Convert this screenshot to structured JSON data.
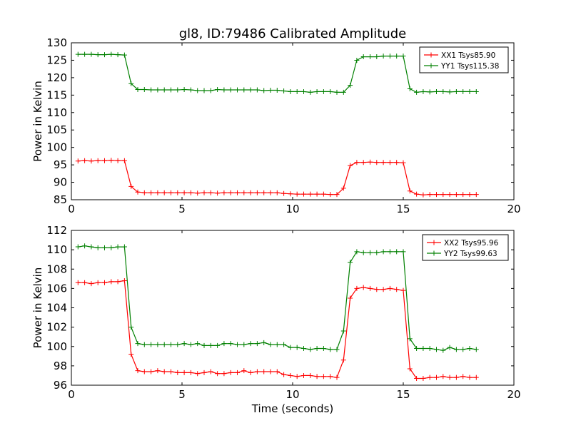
{
  "figure": {
    "title": "gl8, ID:79486 Calibrated Amplitude"
  },
  "chart_data": [
    {
      "type": "line",
      "title": "gl8, ID:79486 Calibrated Amplitude",
      "xlabel": "",
      "ylabel": "Power in Kelvin",
      "xlim": [
        0,
        20
      ],
      "ylim": [
        85,
        130
      ],
      "xticks": [
        0,
        5,
        10,
        15,
        20
      ],
      "yticks": [
        85,
        90,
        95,
        100,
        105,
        110,
        115,
        120,
        125,
        130
      ],
      "grid": false,
      "legend_placement": "top-right",
      "x": [
        0.3,
        0.6,
        0.9,
        1.2,
        1.5,
        1.8,
        2.1,
        2.4,
        2.7,
        3.0,
        3.3,
        3.6,
        3.9,
        4.2,
        4.5,
        4.8,
        5.1,
        5.4,
        5.7,
        6.0,
        6.3,
        6.6,
        6.9,
        7.2,
        7.5,
        7.8,
        8.1,
        8.4,
        8.7,
        9.0,
        9.3,
        9.6,
        9.9,
        10.2,
        10.5,
        10.8,
        11.1,
        11.4,
        11.7,
        12.0,
        12.3,
        12.6,
        12.9,
        13.2,
        13.5,
        13.8,
        14.1,
        14.4,
        14.7,
        15.0,
        15.3,
        15.6,
        15.9,
        16.2,
        16.5,
        16.8,
        17.1,
        17.4,
        17.7,
        18.0,
        18.3
      ],
      "series": [
        {
          "name": "XX1 Tsys85.90",
          "color": "#ff0000",
          "values": [
            96.1,
            96.2,
            96.1,
            96.2,
            96.2,
            96.3,
            96.2,
            96.2,
            88.8,
            87.2,
            87.0,
            87.0,
            87.0,
            87.0,
            87.0,
            87.0,
            87.0,
            87.0,
            86.9,
            87.0,
            87.0,
            86.9,
            87.0,
            87.0,
            87.0,
            87.0,
            87.0,
            87.0,
            87.0,
            87.0,
            87.0,
            86.8,
            86.7,
            86.6,
            86.6,
            86.6,
            86.6,
            86.6,
            86.5,
            86.5,
            88.3,
            94.8,
            95.7,
            95.7,
            95.8,
            95.7,
            95.7,
            95.7,
            95.7,
            95.6,
            87.5,
            86.6,
            86.4,
            86.5,
            86.5,
            86.5,
            86.5,
            86.5,
            86.5,
            86.5,
            86.5
          ]
        },
        {
          "name": "YY1 Tsys115.38",
          "color": "#008000",
          "values": [
            126.7,
            126.7,
            126.7,
            126.6,
            126.6,
            126.7,
            126.6,
            126.5,
            118.3,
            116.6,
            116.6,
            116.5,
            116.5,
            116.5,
            116.5,
            116.5,
            116.6,
            116.5,
            116.3,
            116.3,
            116.3,
            116.6,
            116.5,
            116.5,
            116.5,
            116.5,
            116.5,
            116.5,
            116.3,
            116.4,
            116.4,
            116.2,
            116.0,
            116.0,
            116.0,
            115.8,
            116.0,
            116.0,
            116.0,
            115.8,
            115.8,
            117.8,
            125.0,
            126.0,
            126.0,
            126.0,
            126.2,
            126.2,
            126.2,
            126.2,
            116.8,
            115.8,
            116.0,
            115.9,
            116.0,
            116.0,
            115.9,
            116.0,
            116.0,
            116.0,
            116.0
          ]
        }
      ]
    },
    {
      "type": "line",
      "title": "",
      "xlabel": "Time (seconds)",
      "ylabel": "Power in Kelvin",
      "xlim": [
        0,
        20
      ],
      "ylim": [
        96,
        112
      ],
      "xticks": [
        0,
        5,
        10,
        15,
        20
      ],
      "yticks": [
        96,
        98,
        100,
        102,
        104,
        106,
        108,
        110,
        112
      ],
      "grid": false,
      "legend_placement": "top-right",
      "x": [
        0.3,
        0.6,
        0.9,
        1.2,
        1.5,
        1.8,
        2.1,
        2.4,
        2.7,
        3.0,
        3.3,
        3.6,
        3.9,
        4.2,
        4.5,
        4.8,
        5.1,
        5.4,
        5.7,
        6.0,
        6.3,
        6.6,
        6.9,
        7.2,
        7.5,
        7.8,
        8.1,
        8.4,
        8.7,
        9.0,
        9.3,
        9.6,
        9.9,
        10.2,
        10.5,
        10.8,
        11.1,
        11.4,
        11.7,
        12.0,
        12.3,
        12.6,
        12.9,
        13.2,
        13.5,
        13.8,
        14.1,
        14.4,
        14.7,
        15.0,
        15.3,
        15.6,
        15.9,
        16.2,
        16.5,
        16.8,
        17.1,
        17.4,
        17.7,
        18.0,
        18.3
      ],
      "series": [
        {
          "name": "XX2 Tsys95.96",
          "color": "#ff0000",
          "values": [
            106.6,
            106.6,
            106.5,
            106.6,
            106.6,
            106.7,
            106.7,
            106.8,
            99.2,
            97.5,
            97.4,
            97.4,
            97.5,
            97.4,
            97.4,
            97.3,
            97.3,
            97.3,
            97.2,
            97.3,
            97.4,
            97.2,
            97.2,
            97.3,
            97.3,
            97.5,
            97.3,
            97.4,
            97.4,
            97.4,
            97.4,
            97.1,
            97.0,
            96.9,
            97.0,
            97.0,
            96.9,
            96.9,
            96.9,
            96.8,
            98.6,
            105.0,
            106.0,
            106.1,
            106.0,
            105.9,
            105.9,
            106.0,
            105.9,
            105.8,
            97.7,
            96.7,
            96.7,
            96.8,
            96.8,
            96.9,
            96.8,
            96.8,
            96.9,
            96.8,
            96.8
          ]
        },
        {
          "name": "YY2 Tsys99.63",
          "color": "#008000",
          "values": [
            110.3,
            110.4,
            110.3,
            110.2,
            110.2,
            110.2,
            110.3,
            110.3,
            102.0,
            100.3,
            100.2,
            100.2,
            100.2,
            100.2,
            100.2,
            100.2,
            100.3,
            100.2,
            100.3,
            100.1,
            100.1,
            100.1,
            100.3,
            100.3,
            100.2,
            100.2,
            100.3,
            100.3,
            100.4,
            100.2,
            100.2,
            100.2,
            99.9,
            99.9,
            99.8,
            99.7,
            99.8,
            99.8,
            99.7,
            99.7,
            101.6,
            108.7,
            109.8,
            109.7,
            109.7,
            109.7,
            109.8,
            109.8,
            109.8,
            109.8,
            100.8,
            99.8,
            99.8,
            99.8,
            99.7,
            99.6,
            99.9,
            99.7,
            99.7,
            99.8,
            99.7
          ]
        }
      ]
    }
  ]
}
